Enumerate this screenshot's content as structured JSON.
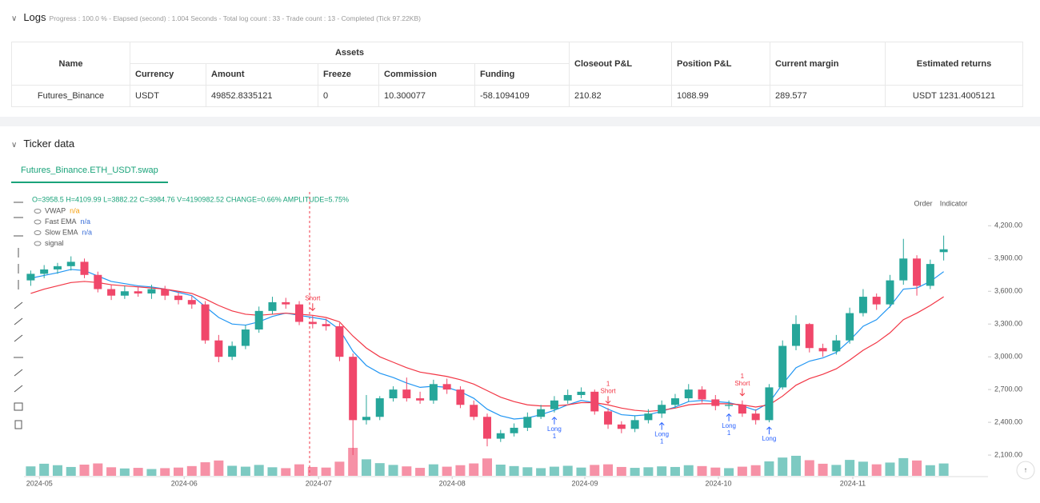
{
  "logs": {
    "title": "Logs",
    "summary": "Progress : 100.0 % - Elapsed (second) : 1.004 Seconds - Total log count : 33 - Trade count : 13 - Completed (Tick 97.22KB)"
  },
  "table": {
    "headers": [
      "Name",
      "Assets",
      "Closeout P&L",
      "Position P&L",
      "Current margin",
      "Estimated returns"
    ],
    "subheaders": [
      "Currency",
      "Amount",
      "Freeze",
      "Commission",
      "Funding"
    ],
    "rows": [
      [
        "Futures_Binance",
        "USDT",
        "49852.8335121",
        "0",
        "10.300077",
        "-58.1094109",
        "210.82",
        "1088.99",
        "289.577",
        "USDT 1231.4005121"
      ]
    ]
  },
  "ticker": {
    "title": "Ticker data",
    "tab": "Futures_Binance.ETH_USDT.swap",
    "buttons": [
      "Order",
      "Indicator"
    ]
  },
  "chart_data": {
    "type": "candlestick",
    "status": "O=3958.5 H=4109.99 L=3882.22 C=3984.76 V=4190982.52 CHANGE=0.66% AMPLITUDE=5.75%",
    "indicators": [
      {
        "name": "VWAP",
        "value": "n/a",
        "color": "#f59e0b"
      },
      {
        "name": "Fast EMA",
        "value": "n/a",
        "color": "#3b6fd8"
      },
      {
        "name": "Slow EMA",
        "value": "n/a",
        "color": "#3b6fd8"
      },
      {
        "name": "signal"
      }
    ],
    "up_color": "#26a69a",
    "down_color": "#f0476a",
    "xlim": [
      -0.5,
      71.3
    ],
    "xticks": [
      {
        "value": 0.65,
        "label": "2024-05"
      },
      {
        "value": 11.43,
        "label": "2024-06"
      },
      {
        "value": 21.44,
        "label": "2024-07"
      },
      {
        "value": 31.39,
        "label": "2024-08"
      },
      {
        "value": 41.27,
        "label": "2024-09"
      },
      {
        "value": 51.22,
        "label": "2024-10"
      },
      {
        "value": 61.23,
        "label": "2024-11"
      }
    ],
    "ylim": [
      1910,
      4510
    ],
    "yticks": [
      {
        "value": 2100,
        "label": "2,100.00"
      },
      {
        "value": 2400,
        "label": "2,400.00"
      },
      {
        "value": 2700,
        "label": "2,700.00"
      },
      {
        "value": 3000,
        "label": "3,000.00"
      },
      {
        "value": 3300,
        "label": "3,300.00"
      },
      {
        "value": 3600,
        "label": "3,600.00"
      },
      {
        "value": 3900,
        "label": "3,900.00"
      },
      {
        "value": 4200,
        "label": "4,200.00"
      }
    ],
    "open": [
      3700,
      3760,
      3800,
      3830,
      3870,
      3750,
      3620,
      3560,
      3600,
      3580,
      3620,
      3560,
      3520,
      3480,
      3150,
      3000,
      3100,
      3250,
      3420,
      3500,
      3480,
      3320,
      3300,
      3280,
      3000,
      2420,
      2450,
      2620,
      2700,
      2620,
      2600,
      2750,
      2700,
      2560,
      2450,
      2250,
      2300,
      2350,
      2450,
      2520,
      2600,
      2650,
      2680,
      2500,
      2380,
      2340,
      2420,
      2480,
      2560,
      2620,
      2700,
      2610,
      2550,
      2560,
      2480,
      2420,
      2720,
      3100,
      3300,
      3080,
      3050,
      3150,
      3400,
      3550,
      3480,
      3700,
      3900,
      3650,
      3958.5
    ],
    "high": [
      3790,
      3840,
      3860,
      3920,
      3900,
      3780,
      3660,
      3650,
      3640,
      3660,
      3650,
      3590,
      3560,
      3510,
      3200,
      3140,
      3290,
      3460,
      3550,
      3540,
      3510,
      3380,
      3350,
      3310,
      3030,
      2650,
      2640,
      2730,
      2810,
      2680,
      2790,
      2800,
      2730,
      2600,
      2480,
      2330,
      2390,
      2490,
      2560,
      2640,
      2700,
      2720,
      2700,
      2530,
      2410,
      2460,
      2520,
      2600,
      2660,
      2750,
      2730,
      2650,
      2600,
      2600,
      2520,
      2750,
      3150,
      3380,
      3310,
      3120,
      3200,
      3450,
      3620,
      3580,
      3750,
      4080,
      3930,
      3890,
      4109.99
    ],
    "low": [
      3650,
      3720,
      3760,
      3790,
      3720,
      3590,
      3520,
      3530,
      3550,
      3530,
      3520,
      3480,
      3440,
      3120,
      2950,
      2970,
      3070,
      3220,
      3390,
      3440,
      3290,
      3260,
      3240,
      2960,
      2100,
      2380,
      2420,
      2590,
      2590,
      2570,
      2570,
      2660,
      2530,
      2420,
      2180,
      2220,
      2270,
      2320,
      2430,
      2490,
      2570,
      2620,
      2470,
      2340,
      2300,
      2310,
      2390,
      2440,
      2530,
      2590,
      2580,
      2510,
      2520,
      2450,
      2380,
      2400,
      2700,
      3060,
      3040,
      3000,
      3020,
      3120,
      3370,
      3430,
      3450,
      3660,
      3560,
      3620,
      3882.22
    ],
    "close": [
      3760,
      3800,
      3830,
      3870,
      3750,
      3620,
      3560,
      3600,
      3580,
      3620,
      3560,
      3520,
      3480,
      3150,
      3000,
      3100,
      3250,
      3420,
      3500,
      3480,
      3320,
      3300,
      3280,
      3000,
      2420,
      2450,
      2620,
      2700,
      2620,
      2600,
      2750,
      2700,
      2560,
      2450,
      2250,
      2300,
      2350,
      2450,
      2520,
      2600,
      2650,
      2680,
      2500,
      2380,
      2340,
      2420,
      2480,
      2560,
      2620,
      2700,
      2610,
      2550,
      2560,
      2480,
      2420,
      2720,
      3100,
      3300,
      3080,
      3050,
      3150,
      3400,
      3550,
      3480,
      3700,
      3900,
      3650,
      3850,
      3984.76
    ],
    "volume": [
      3200000,
      4100000,
      3600000,
      3000000,
      3800000,
      4200000,
      2900000,
      2500000,
      2700000,
      2300000,
      2600000,
      2800000,
      3300000,
      4600000,
      5200000,
      3400000,
      3100000,
      3700000,
      2900000,
      2600000,
      3900000,
      3000000,
      2800000,
      4800000,
      9500000,
      5600000,
      4300000,
      3700000,
      3200000,
      2700000,
      3900000,
      3100000,
      3600000,
      4200000,
      5900000,
      3800000,
      3300000,
      2900000,
      2600000,
      3100000,
      3400000,
      2800000,
      3700000,
      3900000,
      3000000,
      2700000,
      2900000,
      3200000,
      3000000,
      3600000,
      3300000,
      2800000,
      2600000,
      3100000,
      3600000,
      4900000,
      6200000,
      6800000,
      5300000,
      4100000,
      3700000,
      5400000,
      4800000,
      3900000,
      4500000,
      6000000,
      5200000,
      3600000,
      4190982.52
    ],
    "vlim": [
      0,
      9500000
    ],
    "series": [
      {
        "name": "Fast EMA",
        "color": "#2196f3",
        "values": [
          3720,
          3745,
          3770,
          3800,
          3790,
          3740,
          3690,
          3670,
          3650,
          3640,
          3620,
          3590,
          3560,
          3460,
          3360,
          3300,
          3290,
          3320,
          3370,
          3400,
          3380,
          3360,
          3340,
          3250,
          3050,
          2920,
          2850,
          2810,
          2760,
          2720,
          2730,
          2720,
          2680,
          2620,
          2520,
          2460,
          2430,
          2440,
          2470,
          2510,
          2560,
          2600,
          2580,
          2520,
          2470,
          2460,
          2470,
          2500,
          2540,
          2590,
          2600,
          2590,
          2580,
          2550,
          2510,
          2580,
          2750,
          2900,
          2960,
          2990,
          3040,
          3150,
          3280,
          3340,
          3460,
          3620,
          3630,
          3690,
          3780
        ]
      },
      {
        "name": "Slow EMA",
        "color": "#f23645",
        "values": [
          3580,
          3620,
          3650,
          3680,
          3690,
          3680,
          3660,
          3650,
          3640,
          3630,
          3620,
          3600,
          3580,
          3530,
          3470,
          3420,
          3390,
          3380,
          3390,
          3400,
          3390,
          3380,
          3360,
          3320,
          3190,
          3080,
          3000,
          2950,
          2900,
          2860,
          2840,
          2820,
          2790,
          2750,
          2690,
          2630,
          2590,
          2560,
          2550,
          2550,
          2560,
          2580,
          2580,
          2560,
          2530,
          2510,
          2500,
          2510,
          2530,
          2560,
          2570,
          2570,
          2570,
          2560,
          2540,
          2560,
          2640,
          2740,
          2800,
          2840,
          2890,
          2970,
          3060,
          3130,
          3220,
          3340,
          3400,
          3470,
          3550
        ]
      }
    ],
    "signals": [
      {
        "text": "Short",
        "index": 21
      },
      {
        "text": "Long",
        "count": "1",
        "index": 39
      },
      {
        "text": "Short",
        "count": "1",
        "index": 43
      },
      {
        "text": "Long",
        "count": "1",
        "index": 47
      },
      {
        "text": "Long",
        "count": "1",
        "index": 52
      },
      {
        "text": "Short",
        "count": "1",
        "index": 53
      },
      {
        "text": "Long",
        "index": 55
      }
    ],
    "grid": false
  }
}
